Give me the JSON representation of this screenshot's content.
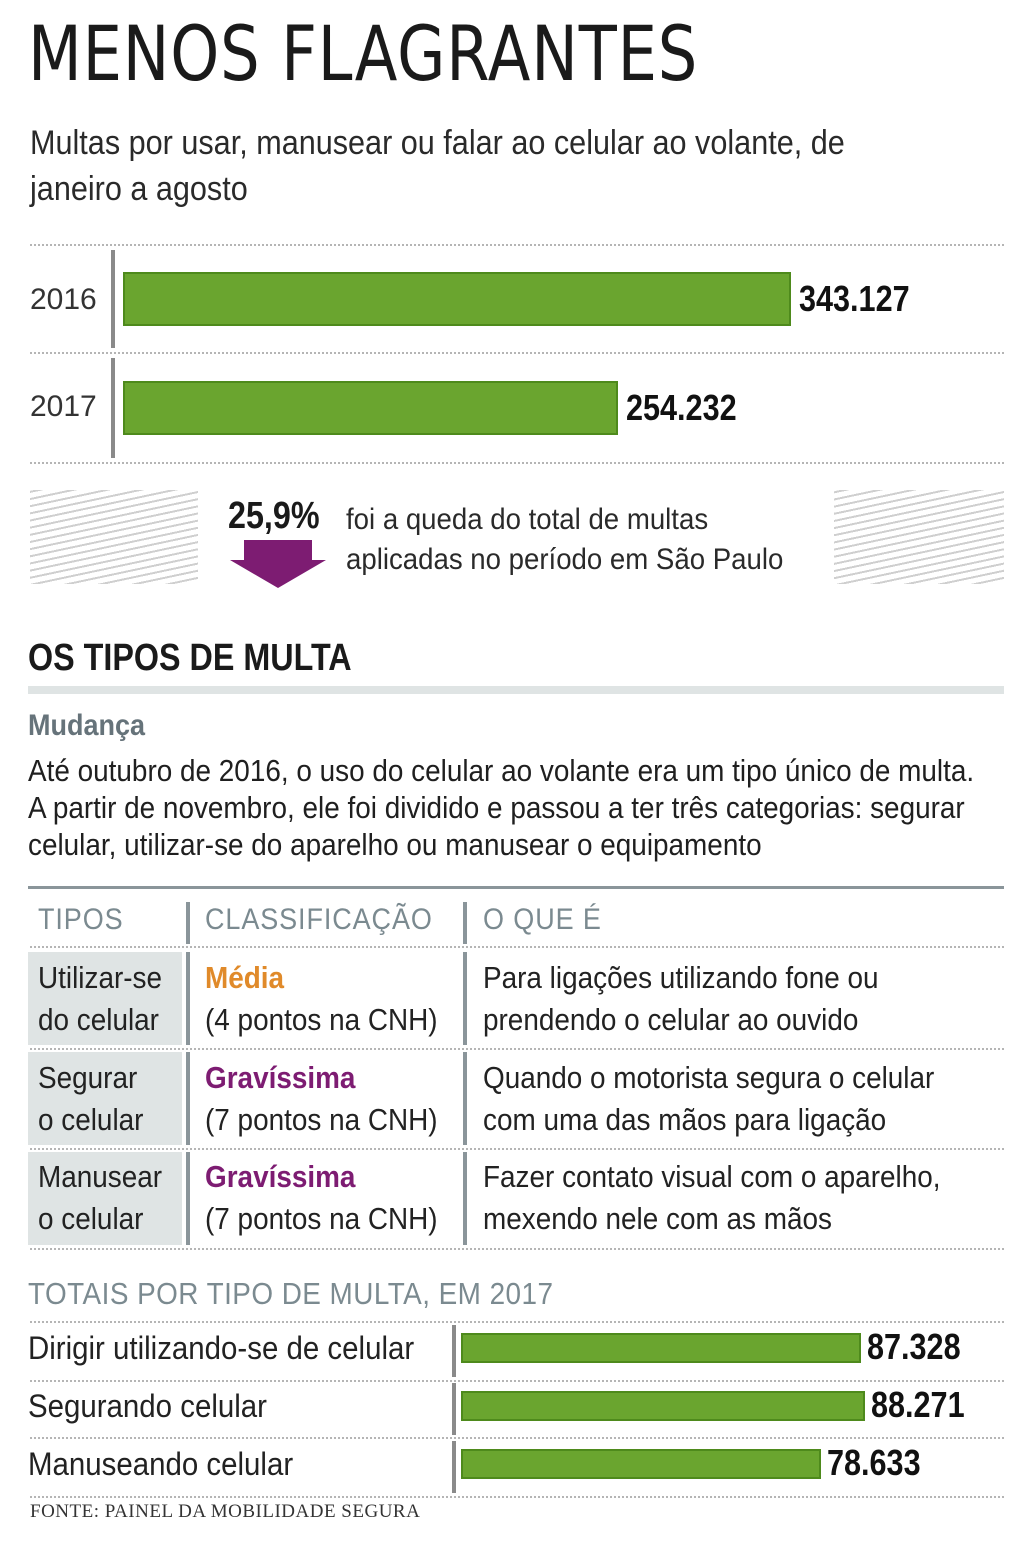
{
  "title": "MENOS FLAGRANTES",
  "subtitle": "Multas por usar, manusear ou falar ao celular ao volante, de janeiro a agosto",
  "colors": {
    "bar_green": "#6aa52f",
    "arrow_purple": "#7d1c72",
    "media_orange": "#e08a2a",
    "gravissima_purple": "#7d1c72",
    "gray_text": "#7b8a90"
  },
  "chart_data": [
    {
      "type": "bar",
      "orientation": "horizontal",
      "categories": [
        "2016",
        "2017"
      ],
      "values": [
        343127,
        254232
      ],
      "value_labels": [
        "343.127",
        "254.232"
      ]
    },
    {
      "type": "bar",
      "orientation": "horizontal",
      "title": "TOTAIS POR TIPO DE MULTA, EM 2017",
      "categories": [
        "Dirigir utilizando-se de celular",
        "Segurando celular",
        "Manuseando celular"
      ],
      "values": [
        87328,
        88271,
        78633
      ],
      "value_labels": [
        "87.328",
        "88.271",
        "78.633"
      ]
    }
  ],
  "drop": {
    "percent": "25,9%",
    "text": "foi a queda do total de multas aplicadas no período em São Paulo",
    "arrow_icon": "down-arrow-icon"
  },
  "section": {
    "title": "OS TIPOS DE MULTA",
    "change_title": "Mudança",
    "change_text": "Até outubro de 2016, o uso do celular ao volante era um tipo único de multa. A partir de novembro, ele foi dividido e passou a ter três categorias: segurar celular, utilizar-se do aparelho ou manusear o equipamento"
  },
  "table": {
    "headers": [
      "TIPOS",
      "CLASSIFICAÇÃO",
      "O QUE É"
    ],
    "rows": [
      {
        "type_l1": "Utilizar-se",
        "type_l2": "do celular",
        "class": "Média",
        "points": "(4 pontos na CNH)",
        "desc_l1": "Para ligações utilizando fone ou",
        "desc_l2": "prendendo o celular ao ouvido",
        "class_color": "#e08a2a"
      },
      {
        "type_l1": "Segurar",
        "type_l2": "o celular",
        "class": "Gravíssima",
        "points": "(7 pontos na CNH)",
        "desc_l1": "Quando o motorista segura o celular",
        "desc_l2": "com uma das mãos para ligação",
        "class_color": "#7d1c72"
      },
      {
        "type_l1": "Manusear",
        "type_l2": "o celular",
        "class": "Gravíssima",
        "points": "(7 pontos na CNH)",
        "desc_l1": "Fazer contato visual com o aparelho,",
        "desc_l2": "mexendo nele com as mãos",
        "class_color": "#7d1c72"
      }
    ]
  },
  "source": "FONTE: PAINEL DA MOBILIDADE SEGURA"
}
